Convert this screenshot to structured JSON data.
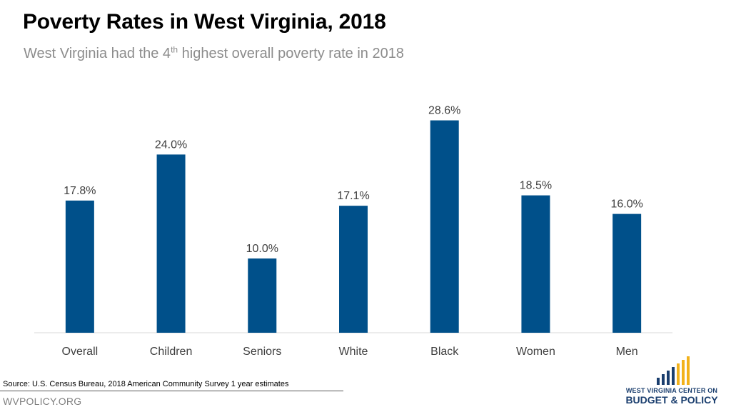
{
  "chart_data": {
    "type": "bar",
    "title": "Poverty Rates in West Virginia, 2018",
    "subtitle_prefix": "West Virginia had the 4",
    "subtitle_sup": "th",
    "subtitle_suffix": " highest overall poverty rate in 2018",
    "categories": [
      "Overall",
      "Children",
      "Seniors",
      "White",
      "Black",
      "Women",
      "Men"
    ],
    "values": [
      17.8,
      24.0,
      10.0,
      17.1,
      28.6,
      18.5,
      16.0
    ],
    "data_labels": [
      "17.8%",
      "24.0%",
      "10.0%",
      "17.1%",
      "28.6%",
      "18.5%",
      "16.0%"
    ],
    "xlabel": "",
    "ylabel": "",
    "ylim": [
      0,
      30
    ],
    "grid": false,
    "legend": "none",
    "bar_color": "#00508a",
    "axis_color": "#d9d9d9"
  },
  "footer": {
    "source": "Source: U.S. Census Bureau, 2018 American Community Survey 1 year estimates",
    "site": "WVPOLICY.ORG"
  },
  "logo": {
    "line1": "WEST VIRGINIA CENTER ON",
    "line2": "BUDGET & POLICY",
    "bar_colors": [
      "#1a3e6e",
      "#1a3e6e",
      "#1a3e6e",
      "#1a3e6e",
      "#f2b21b",
      "#f2b21b",
      "#f2b21b"
    ]
  }
}
